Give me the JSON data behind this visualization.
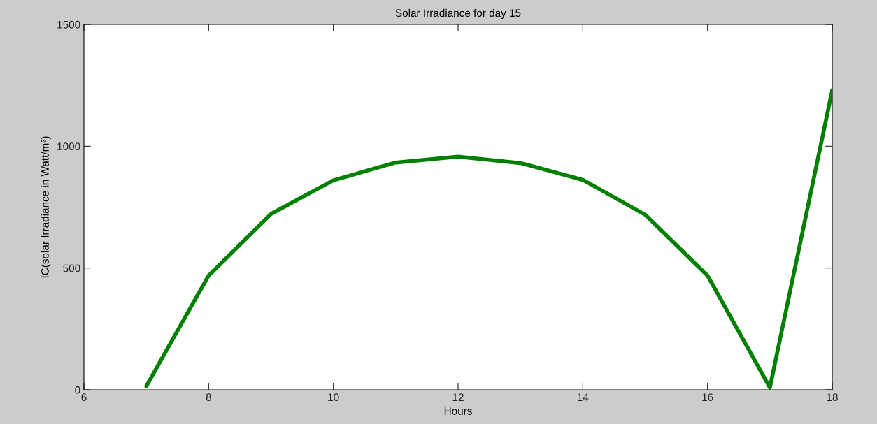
{
  "chart_data": {
    "type": "line",
    "title": "Solar Irradiance for day 15",
    "xlabel": "Hours",
    "ylabel": "IC(solar Irradiance in Watt/m²)",
    "x": [
      7,
      8,
      9,
      10,
      11,
      12,
      13,
      14,
      15,
      16,
      17,
      18
    ],
    "series": [
      {
        "color": "#008000",
        "values": [
          15,
          469,
          722,
          860,
          933,
          957,
          931,
          862,
          719,
          469,
          9,
          1230
        ]
      }
    ],
    "xlim": [
      6,
      18
    ],
    "xticks": [
      6,
      8,
      10,
      12,
      14,
      16,
      18
    ],
    "ylim": [
      0,
      1500
    ],
    "yticks": [
      0,
      500,
      1000,
      1500
    ],
    "grid": false,
    "marker": "none",
    "line_style": "solid"
  }
}
